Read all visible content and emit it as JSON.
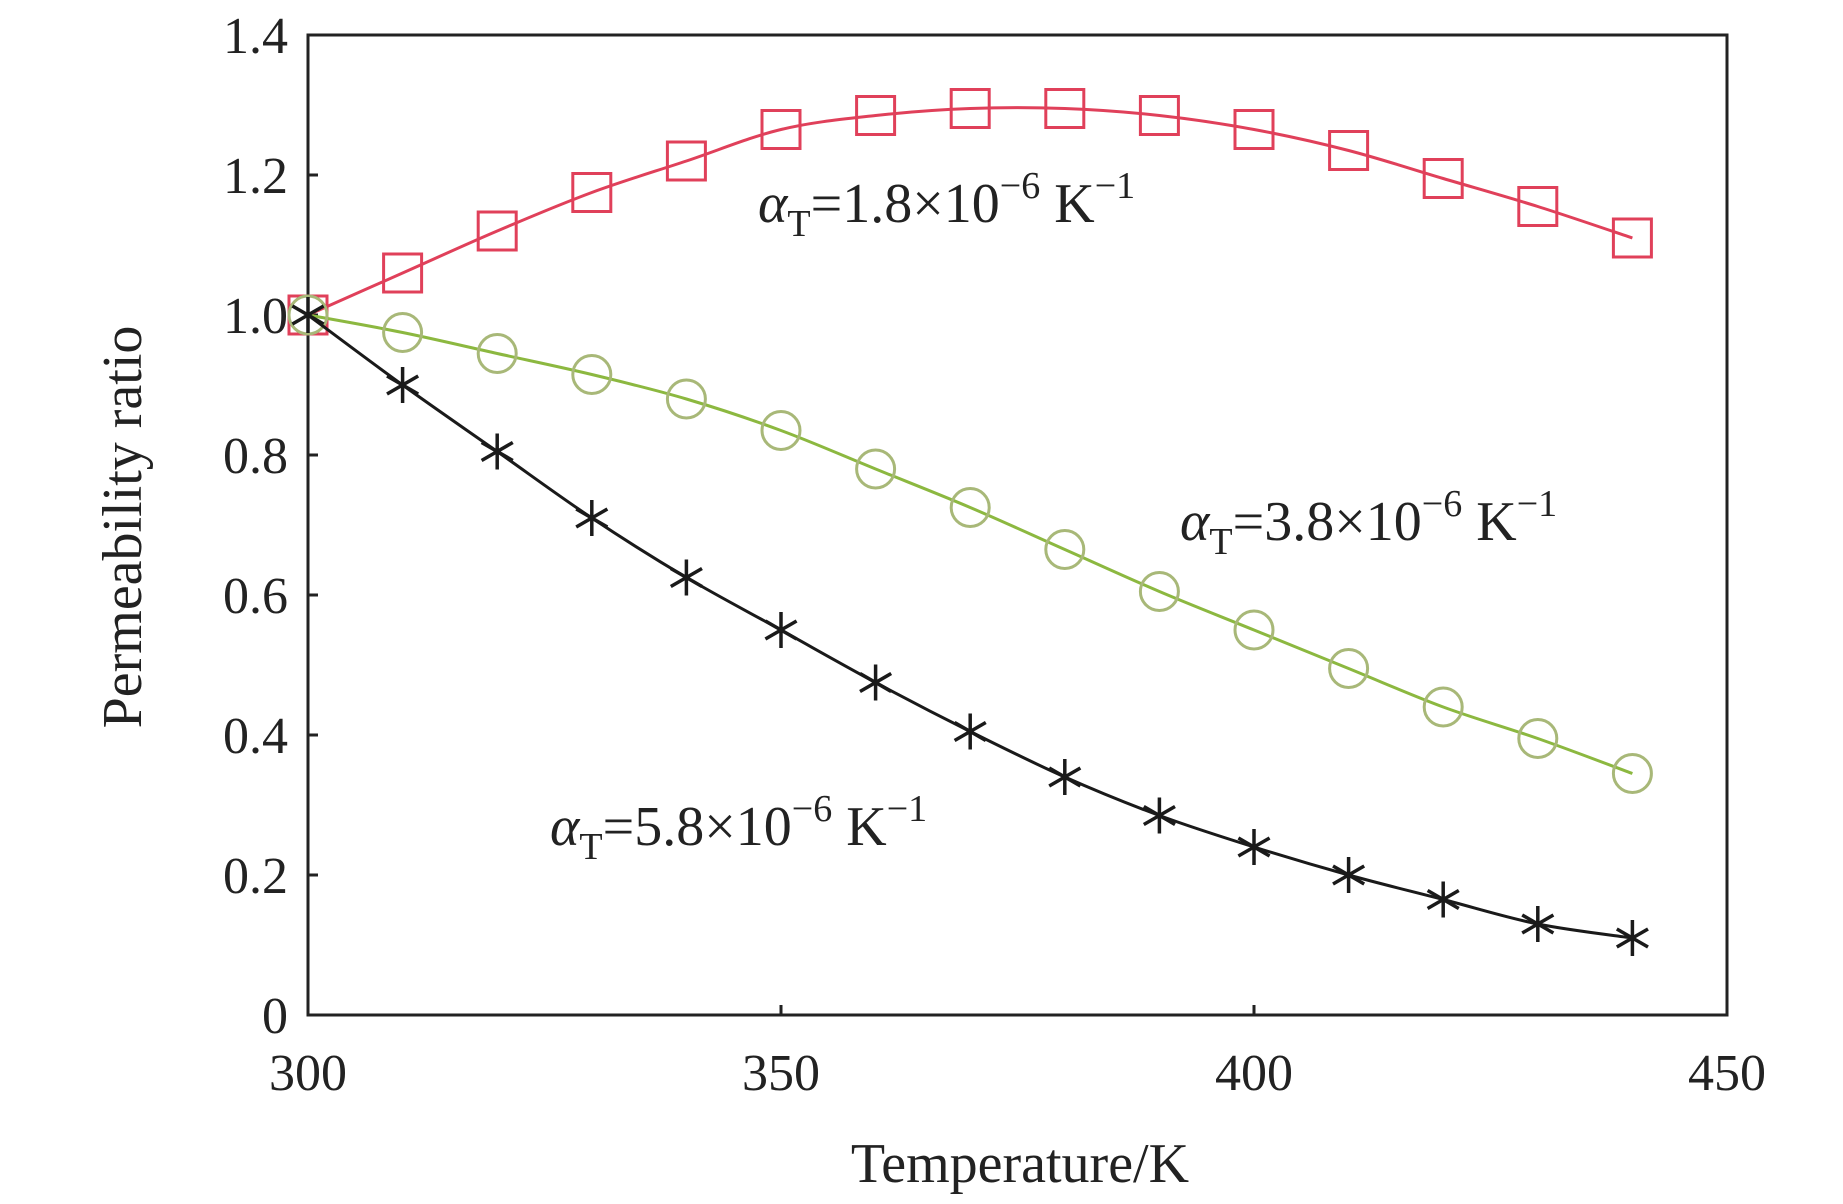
{
  "chart_data": {
    "type": "line",
    "title": "",
    "xlabel": "Temperature/K",
    "ylabel": "Permeability ratio",
    "xlim": [
      300,
      450
    ],
    "ylim": [
      0,
      1.4
    ],
    "xticks": [
      300,
      350,
      400,
      450
    ],
    "xtick_labels": [
      "300",
      "350",
      "400",
      "450"
    ],
    "yticks": [
      0,
      0.2,
      0.4,
      0.6,
      0.8,
      1.0,
      1.2,
      1.4
    ],
    "ytick_labels": [
      "0",
      "0.2",
      "0.4",
      "0.6",
      "0.8",
      "1.0",
      "1.2",
      "1.4"
    ],
    "grid": false,
    "x": [
      300,
      310,
      320,
      330,
      340,
      350,
      360,
      370,
      380,
      390,
      400,
      410,
      420,
      430,
      440
    ],
    "series": [
      {
        "label_parts": {
          "symbol": "α",
          "subscript": "T",
          "value": "=1.8×10",
          "exponent": "−6",
          "unit": " K",
          "unit_exponent": "−1"
        },
        "marker": "square",
        "line_color": "#e0405a",
        "marker_color": "#e0405a",
        "values": [
          1.0,
          1.06,
          1.12,
          1.175,
          1.22,
          1.265,
          1.285,
          1.295,
          1.295,
          1.285,
          1.265,
          1.235,
          1.195,
          1.155,
          1.11
        ]
      },
      {
        "label_parts": {
          "symbol": "α",
          "subscript": "T",
          "value": "=3.8×10",
          "exponent": "−6",
          "unit": " K",
          "unit_exponent": "−1"
        },
        "marker": "circle",
        "line_color": "#8cb840",
        "marker_color": "#a8b878",
        "values": [
          1.0,
          0.975,
          0.945,
          0.915,
          0.88,
          0.835,
          0.78,
          0.725,
          0.665,
          0.605,
          0.55,
          0.495,
          0.44,
          0.395,
          0.345
        ]
      },
      {
        "label_parts": {
          "symbol": "α",
          "subscript": "T",
          "value": "=5.8×10",
          "exponent": "−6",
          "unit": " K",
          "unit_exponent": "−1"
        },
        "marker": "asterisk",
        "line_color": "#1a1a1a",
        "marker_color": "#1a1a1a",
        "values": [
          1.0,
          0.9,
          0.805,
          0.71,
          0.625,
          0.55,
          0.475,
          0.405,
          0.34,
          0.285,
          0.24,
          0.2,
          0.165,
          0.13,
          0.11
        ]
      }
    ]
  }
}
